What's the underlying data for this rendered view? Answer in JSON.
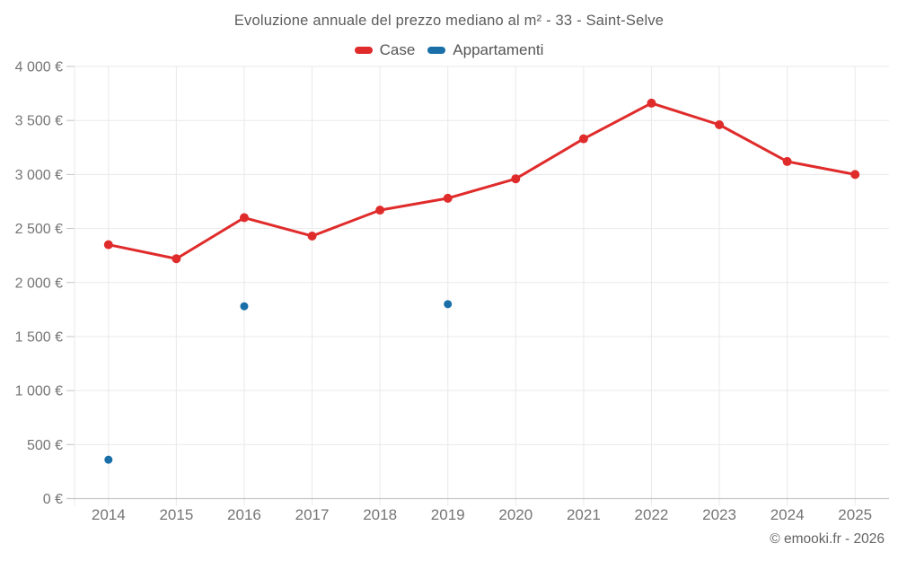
{
  "chart_data": {
    "type": "line",
    "title": "Evoluzione annuale del prezzo mediano al m² - 33 - Saint-Selve",
    "categories": [
      "2014",
      "2015",
      "2016",
      "2017",
      "2018",
      "2019",
      "2020",
      "2021",
      "2022",
      "2023",
      "2024",
      "2025"
    ],
    "series": [
      {
        "name": "Case",
        "color": "#e02b2b",
        "mode": "line+markers",
        "values": [
          2350,
          2220,
          2600,
          2430,
          2670,
          2780,
          2960,
          3330,
          3660,
          3460,
          3120,
          3000
        ]
      },
      {
        "name": "Appartamenti",
        "color": "#1a6fa8",
        "mode": "markers",
        "values": [
          360,
          null,
          1780,
          null,
          null,
          1800,
          null,
          null,
          null,
          null,
          null,
          null
        ]
      }
    ],
    "xlabel": "",
    "ylabel": "",
    "ylim": [
      0,
      4000
    ],
    "yticks": [
      {
        "value": 0,
        "label": "0 €"
      },
      {
        "value": 500,
        "label": "500 €"
      },
      {
        "value": 1000,
        "label": "1 000 €"
      },
      {
        "value": 1500,
        "label": "1 500 €"
      },
      {
        "value": 2000,
        "label": "2 000 €"
      },
      {
        "value": 2500,
        "label": "2 500 €"
      },
      {
        "value": 3000,
        "label": "3 000 €"
      },
      {
        "value": 3500,
        "label": "3 500 €"
      },
      {
        "value": 4000,
        "label": "4 000 €"
      }
    ],
    "grid": true,
    "legend_position": "top"
  },
  "footer": {
    "credit": "© emooki.fr - 2026"
  },
  "colors": {
    "background": "#ffffff",
    "grid": "#e9e9e9",
    "axis": "#c4c4c4",
    "tick_label": "#757575",
    "title": "#5c5c5c",
    "legend_label": "#555555",
    "credit": "#636363",
    "series_case": "#e02b2b",
    "series_appartamenti": "#1a6fa8"
  }
}
